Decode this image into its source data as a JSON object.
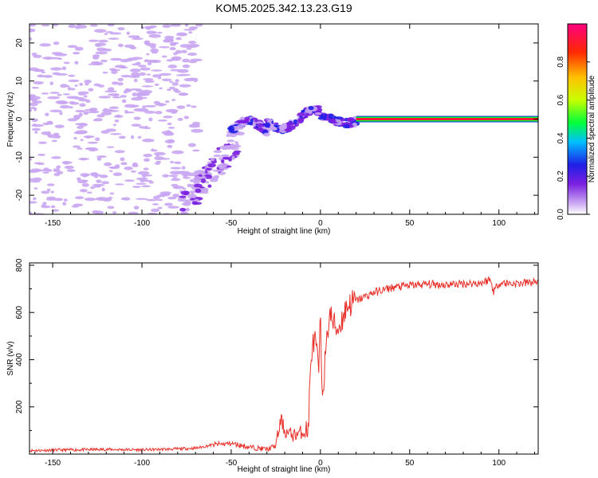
{
  "title": "KOM5.2025.342.13.23.G19",
  "chart_data": [
    {
      "type": "heatmap",
      "xlabel": "Height of straight line (km)",
      "ylabel": "Frequency (Hz)",
      "xlim": [
        -163,
        122
      ],
      "ylim": [
        -25,
        25
      ],
      "xticks": [
        -150,
        -100,
        -50,
        0,
        50,
        100
      ],
      "yticks": [
        -20,
        -10,
        0,
        10,
        20
      ],
      "colorbar": {
        "label": "Normalized spectral amplitude",
        "range": [
          0,
          1
        ],
        "ticks": [
          0.0,
          0.2,
          0.4,
          0.6,
          0.8
        ],
        "colors": [
          "#ffffff",
          "#c9a6f2",
          "#7a1fe0",
          "#1f1fe6",
          "#00bfff",
          "#00ff3a",
          "#c8ff00",
          "#ffc000",
          "#ff2a00",
          "#ff0080"
        ]
      },
      "features": [
        {
          "name": "noise_region",
          "x_range": [
            -163,
            -70
          ],
          "freq_range": [
            -25,
            25
          ],
          "amplitude": 0.05
        },
        {
          "name": "transition_ramp",
          "x_range": [
            -75,
            -45
          ],
          "freq_range": [
            -25,
            -3
          ],
          "amplitude": 0.18
        },
        {
          "name": "oscillating_band",
          "x_range": [
            -50,
            20
          ],
          "freq_center": 0,
          "amplitude": 0.3
        },
        {
          "name": "stable_carrier",
          "x_range": [
            20,
            122
          ],
          "freq_center": 0,
          "amplitude": 0.95
        }
      ]
    },
    {
      "type": "line",
      "xlabel": "Height of straight line (km)",
      "ylabel": "SNR (v/v)",
      "xlim": [
        -163,
        122
      ],
      "ylim": [
        0,
        810
      ],
      "xticks": [
        -150,
        -100,
        -50,
        0,
        50,
        100
      ],
      "yticks": [
        200,
        400,
        600,
        800
      ],
      "color": "#e8312a",
      "series": [
        {
          "name": "SNR",
          "x": [
            -163,
            -140,
            -120,
            -100,
            -80,
            -70,
            -60,
            -50,
            -40,
            -30,
            -25,
            -22,
            -20,
            -15,
            -10,
            -7,
            -5,
            -3,
            -1,
            0,
            1,
            3,
            5,
            8,
            10,
            15,
            20,
            30,
            40,
            50,
            60,
            70,
            80,
            90,
            95,
            97,
            100,
            110,
            122
          ],
          "y": [
            15,
            18,
            20,
            18,
            22,
            25,
            40,
            45,
            30,
            20,
            35,
            150,
            95,
            80,
            95,
            90,
            440,
            480,
            350,
            560,
            260,
            420,
            600,
            540,
            530,
            630,
            650,
            685,
            705,
            715,
            720,
            718,
            722,
            725,
            740,
            690,
            725,
            722,
            730
          ]
        }
      ]
    }
  ]
}
